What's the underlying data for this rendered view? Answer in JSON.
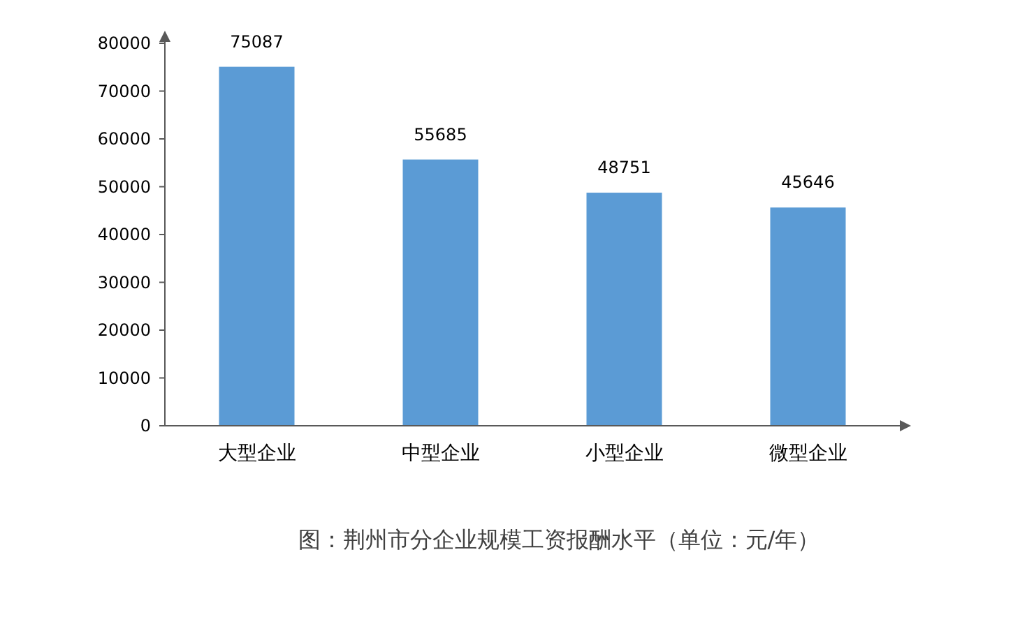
{
  "chart_data": {
    "type": "bar",
    "categories": [
      "大型企业",
      "中型企业",
      "小型企业",
      "微型企业"
    ],
    "values": [
      75087,
      55685,
      48751,
      45646
    ],
    "color": "#5b9bd5",
    "ylim": [
      0,
      80000
    ],
    "yticks": [
      0,
      10000,
      20000,
      30000,
      40000,
      50000,
      60000,
      70000,
      80000
    ],
    "data_labels": true,
    "grid": false,
    "annotations": [
      "图：荆州市分企业规模工资报酬水平（单位：元/年）"
    ]
  }
}
